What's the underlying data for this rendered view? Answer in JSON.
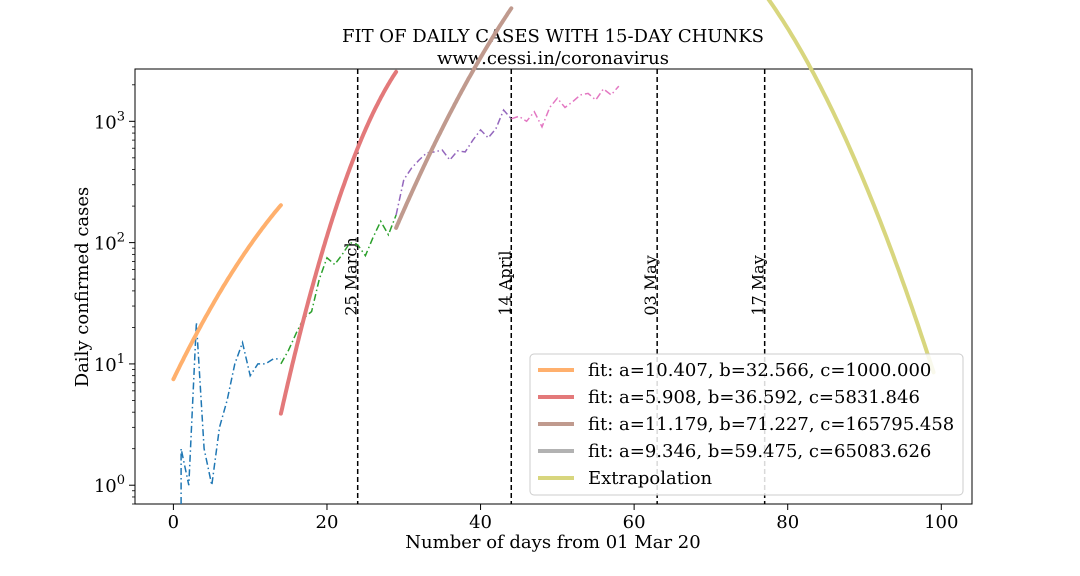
{
  "chart_data": {
    "type": "line",
    "title": "FIT OF DAILY CASES WITH 15-DAY CHUNKS",
    "subtitle": "www.cessi.in/coronavirus",
    "xlabel": "Number of days from 01 Mar 20",
    "ylabel": "Daily confirmed cases",
    "xlim": [
      -5,
      104
    ],
    "ylim": [
      0.7,
      2700
    ],
    "yscale": "log",
    "xticks": [
      0,
      20,
      40,
      60,
      80,
      100
    ],
    "xtick_labels": [
      "0",
      "20",
      "40",
      "60",
      "80",
      "100"
    ],
    "yticks": [
      1,
      10,
      100,
      1000
    ],
    "grid": false,
    "legend_position": "lower-right",
    "vlines": [
      {
        "x": 24,
        "label": "25 March"
      },
      {
        "x": 44,
        "label": "14 April"
      },
      {
        "x": 63,
        "label": "03 May"
      },
      {
        "x": 77,
        "label": "17 May"
      }
    ],
    "data_series": [
      {
        "color": "#1f77b4",
        "x": [
          1,
          1,
          2,
          3,
          4,
          5,
          6,
          7,
          8,
          9,
          10,
          11,
          12,
          13,
          14
        ],
        "y": [
          0.7,
          2,
          1,
          22,
          2,
          1,
          3,
          5,
          10,
          15,
          8,
          10,
          10,
          11,
          11
        ]
      },
      {
        "color": "#2ca02c",
        "x": [
          14,
          15,
          16,
          17,
          18,
          19,
          20,
          21,
          22,
          23,
          24,
          25,
          26,
          27,
          28,
          29
        ],
        "y": [
          10,
          13,
          18,
          24,
          27,
          50,
          75,
          66,
          80,
          100,
          96,
          78,
          110,
          150,
          116,
          169
        ]
      },
      {
        "color": "#9467bd",
        "x": [
          29,
          30,
          31,
          32,
          33,
          34,
          35,
          36,
          37,
          38,
          39,
          40,
          41,
          42,
          43,
          44
        ],
        "y": [
          169,
          330,
          410,
          480,
          550,
          560,
          580,
          480,
          570,
          560,
          700,
          850,
          730,
          870,
          1240,
          1050
        ]
      },
      {
        "color": "#e377c2",
        "x": [
          44,
          45,
          46,
          47,
          48,
          49,
          50,
          51,
          52,
          53,
          54,
          55,
          56,
          57,
          58
        ],
        "y": [
          1050,
          1100,
          1000,
          1200,
          900,
          1300,
          1550,
          1300,
          1450,
          1650,
          1700,
          1500,
          1850,
          1650,
          1950
        ]
      }
    ],
    "series": [
      {
        "name": "fit: a=10.407, b=32.566, c=1000.000",
        "color": "#ffb06d",
        "a": 10.407,
        "b": 32.566,
        "c": 1000.0,
        "x_range": [
          0,
          14
        ]
      },
      {
        "name": "fit: a=5.908, b=36.592, c=5831.846",
        "color": "#e3797a",
        "a": 5.908,
        "b": 36.592,
        "c": 5831.846,
        "x_range": [
          14,
          29
        ]
      },
      {
        "name": "fit: a=11.179, b=71.227, c=165795.458",
        "color": "#c09a8e",
        "a": 11.179,
        "b": 71.227,
        "c": 165795.458,
        "x_range": [
          29,
          44
        ]
      },
      {
        "name": "fit: a=9.346, b=59.475, c=65083.626",
        "color": "#b2b2b2",
        "a": 9.346,
        "b": 59.475,
        "c": 65083.626,
        "x_range": [
          44,
          58
        ]
      },
      {
        "name": "Extrapolation",
        "color": "#d8d67e",
        "a": 9.346,
        "b": 59.475,
        "c": 65083.626,
        "x_range": [
          58,
          99
        ]
      }
    ]
  }
}
